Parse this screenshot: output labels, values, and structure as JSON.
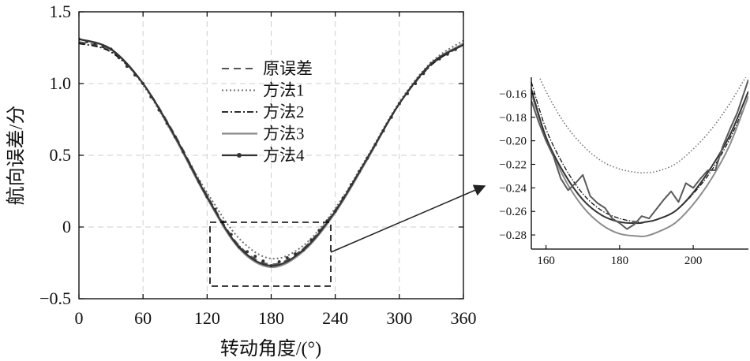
{
  "colors": {
    "orig": "#555555",
    "m1": "#6e6e6e",
    "m2": "#111111",
    "m3": "#8c8c8c",
    "m4": "#333333",
    "grid": "#cfcfcf",
    "axis": "#000000"
  },
  "chart_data": [
    {
      "type": "line",
      "xlabel": "转动角度/(°)",
      "ylabel": "航向误差/分",
      "xlim": [
        0,
        360
      ],
      "ylim": [
        -0.5,
        1.5
      ],
      "xticks": [
        0,
        60,
        120,
        180,
        240,
        300,
        360
      ],
      "yticks": [
        -0.5,
        0,
        0.5,
        1.0,
        1.5
      ],
      "ytick_labels": [
        "−0.5",
        "0",
        "0.5",
        "1.0",
        "1.5"
      ],
      "xtick_labels": [
        "0",
        "60",
        "120",
        "180",
        "240",
        "300",
        "360"
      ],
      "grid": true,
      "legend_position": "upper-center",
      "series": [
        {
          "name": "原误差",
          "style": "dashed",
          "x": [
            0,
            30,
            60,
            90,
            120,
            150,
            180,
            210,
            240,
            270,
            300,
            330,
            360
          ],
          "y": [
            1.29,
            1.23,
            1.0,
            0.64,
            0.22,
            -0.13,
            -0.26,
            -0.15,
            0.12,
            0.48,
            0.86,
            1.13,
            1.28
          ]
        },
        {
          "name": "方法1",
          "style": "dotted",
          "x": [
            0,
            30,
            60,
            90,
            120,
            150,
            180,
            210,
            240,
            270,
            300,
            330,
            360
          ],
          "y": [
            1.31,
            1.24,
            0.99,
            0.62,
            0.24,
            -0.08,
            -0.22,
            -0.13,
            0.13,
            0.49,
            0.87,
            1.15,
            1.3
          ]
        },
        {
          "name": "方法2",
          "style": "dashdot",
          "x": [
            0,
            30,
            60,
            90,
            120,
            150,
            180,
            210,
            240,
            270,
            300,
            330,
            360
          ],
          "y": [
            1.28,
            1.22,
            1.0,
            0.63,
            0.21,
            -0.14,
            -0.27,
            -0.16,
            0.11,
            0.48,
            0.86,
            1.13,
            1.27
          ]
        },
        {
          "name": "方法3",
          "style": "solid",
          "x": [
            0,
            30,
            60,
            90,
            120,
            150,
            180,
            210,
            240,
            270,
            300,
            330,
            360
          ],
          "y": [
            1.31,
            1.24,
            1.0,
            0.62,
            0.2,
            -0.15,
            -0.28,
            -0.17,
            0.1,
            0.47,
            0.86,
            1.14,
            1.28
          ]
        },
        {
          "name": "方法4",
          "style": "solid-marker",
          "x": [
            0,
            30,
            60,
            90,
            120,
            150,
            180,
            210,
            240,
            270,
            300,
            330,
            360
          ],
          "y": [
            1.31,
            1.24,
            1.0,
            0.63,
            0.21,
            -0.14,
            -0.27,
            -0.16,
            0.11,
            0.48,
            0.86,
            1.14,
            1.27
          ]
        }
      ]
    },
    {
      "type": "line",
      "role": "zoom-inset",
      "xlim": [
        156,
        215
      ],
      "ylim": [
        -0.292,
        -0.146
      ],
      "xticks": [
        160,
        180,
        200
      ],
      "yticks": [
        -0.16,
        -0.18,
        -0.2,
        -0.22,
        -0.24,
        -0.26,
        -0.28
      ],
      "ytick_labels": [
        "−0.16",
        "−0.18",
        "−0.20",
        "−0.22",
        "−0.24",
        "−0.26",
        "−0.28"
      ],
      "xtick_labels": [
        "160",
        "180",
        "200"
      ],
      "series": [
        {
          "name": "方法1",
          "x": [
            156,
            160,
            165,
            170,
            175,
            180,
            185,
            187,
            190,
            195,
            200,
            205,
            210,
            215
          ],
          "y": [
            -0.13,
            -0.158,
            -0.185,
            -0.204,
            -0.217,
            -0.224,
            -0.227,
            -0.227,
            -0.226,
            -0.22,
            -0.207,
            -0.19,
            -0.168,
            -0.142
          ]
        },
        {
          "name": "方法2",
          "x": [
            156,
            160,
            165,
            170,
            175,
            180,
            185,
            187,
            190,
            195,
            200,
            205,
            210,
            215
          ],
          "y": [
            -0.15,
            -0.19,
            -0.222,
            -0.245,
            -0.259,
            -0.266,
            -0.269,
            -0.269,
            -0.267,
            -0.26,
            -0.245,
            -0.225,
            -0.198,
            -0.163
          ]
        },
        {
          "name": "方法3",
          "x": [
            156,
            160,
            165,
            170,
            175,
            180,
            185,
            187,
            190,
            195,
            200,
            205,
            210,
            215
          ],
          "y": [
            -0.16,
            -0.197,
            -0.232,
            -0.256,
            -0.271,
            -0.279,
            -0.281,
            -0.281,
            -0.278,
            -0.27,
            -0.254,
            -0.232,
            -0.203,
            -0.162
          ]
        },
        {
          "name": "方法4",
          "x": [
            156,
            160,
            165,
            170,
            175,
            180,
            185,
            187,
            190,
            195,
            200,
            205,
            210,
            215
          ],
          "y": [
            -0.156,
            -0.197,
            -0.228,
            -0.25,
            -0.263,
            -0.269,
            -0.27,
            -0.269,
            -0.267,
            -0.26,
            -0.244,
            -0.222,
            -0.195,
            -0.158
          ]
        },
        {
          "name": "原误差",
          "x": [
            156,
            158,
            160,
            162,
            164,
            166,
            168,
            170,
            172,
            174,
            176,
            178,
            180,
            182,
            184,
            186,
            188,
            190,
            192,
            194,
            196,
            198,
            200,
            202,
            204,
            206,
            208,
            210,
            212,
            215
          ],
          "y": [
            -0.166,
            -0.184,
            -0.2,
            -0.213,
            -0.232,
            -0.242,
            -0.236,
            -0.229,
            -0.247,
            -0.253,
            -0.257,
            -0.266,
            -0.27,
            -0.275,
            -0.271,
            -0.264,
            -0.266,
            -0.258,
            -0.25,
            -0.243,
            -0.252,
            -0.236,
            -0.24,
            -0.232,
            -0.225,
            -0.225,
            -0.205,
            -0.19,
            -0.176,
            -0.148
          ]
        }
      ]
    }
  ]
}
